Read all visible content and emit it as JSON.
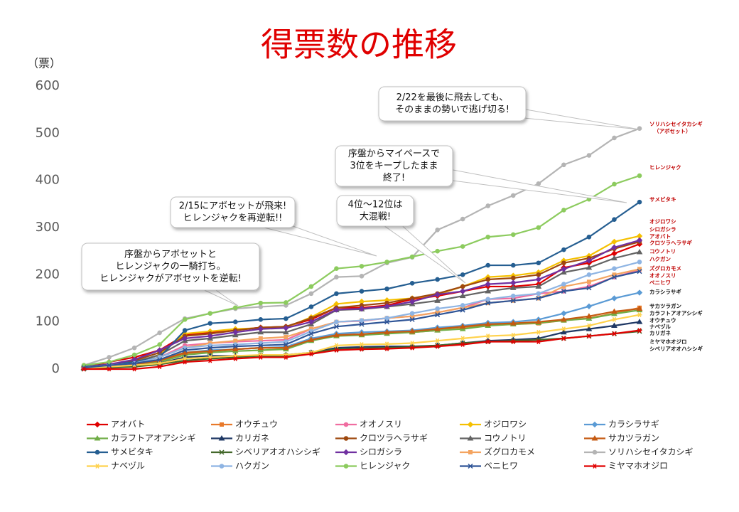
{
  "chart_data": {
    "type": "line",
    "title": "得票数の推移",
    "y_label": "（票）",
    "categories": [
      null,
      null,
      null,
      null,
      null,
      null,
      null,
      null,
      null,
      null,
      null,
      null,
      null,
      null,
      null,
      null,
      null,
      null,
      null,
      null,
      null,
      null,
      null
    ],
    "ylim": [
      0,
      600
    ],
    "yticks": [
      0,
      100,
      200,
      300,
      400,
      500,
      600
    ],
    "grid": false,
    "legend": "bottom",
    "series": [
      {
        "name": "アオバト",
        "color": "#e00000",
        "marker": "diamond",
        "values": [
          3,
          15,
          25,
          40,
          72,
          78,
          83,
          88,
          90,
          105,
          130,
          130,
          135,
          148,
          155,
          165,
          175,
          175,
          180,
          215,
          225,
          245,
          265
        ]
      },
      {
        "name": "オウチュウ",
        "color": "#e8792a",
        "marker": "square",
        "values": [
          3,
          5,
          8,
          15,
          32,
          38,
          42,
          45,
          45,
          62,
          73,
          74,
          76,
          78,
          82,
          87,
          93,
          95,
          97,
          103,
          108,
          118,
          130
        ]
      },
      {
        "name": "オオノスリ",
        "color": "#f06ca0",
        "marker": "circle",
        "values": [
          3,
          8,
          12,
          25,
          50,
          55,
          58,
          60,
          62,
          85,
          100,
          102,
          108,
          112,
          120,
          130,
          148,
          150,
          160,
          165,
          175,
          195,
          210
        ]
      },
      {
        "name": "オジロワシ",
        "color": "#f5c000",
        "marker": "diamond",
        "values": [
          5,
          10,
          15,
          30,
          75,
          80,
          85,
          87,
          88,
          110,
          138,
          143,
          146,
          150,
          158,
          175,
          195,
          198,
          205,
          230,
          240,
          270,
          282
        ]
      },
      {
        "name": "カラシラサギ",
        "color": "#5b9bd5",
        "marker": "diamond",
        "values": [
          3,
          5,
          10,
          20,
          35,
          40,
          42,
          45,
          47,
          65,
          75,
          78,
          80,
          82,
          88,
          92,
          98,
          100,
          105,
          118,
          133,
          150,
          162
        ]
      },
      {
        "name": "カラフトアオアシシギ",
        "color": "#70ad47",
        "marker": "triangle",
        "values": [
          3,
          5,
          8,
          15,
          30,
          35,
          38,
          40,
          42,
          60,
          70,
          72,
          75,
          78,
          82,
          85,
          92,
          95,
          98,
          103,
          107,
          117,
          125
        ]
      },
      {
        "name": "カリガネ",
        "color": "#1f3864",
        "marker": "triangle",
        "values": [
          2,
          5,
          8,
          12,
          25,
          28,
          28,
          28,
          30,
          35,
          45,
          47,
          48,
          48,
          50,
          55,
          60,
          62,
          65,
          78,
          85,
          92,
          100
        ]
      },
      {
        "name": "クロツラヘラサギ",
        "color": "#9e480e",
        "marker": "circle",
        "values": [
          3,
          10,
          18,
          35,
          70,
          75,
          82,
          88,
          90,
          108,
          130,
          135,
          140,
          150,
          160,
          175,
          190,
          193,
          200,
          225,
          235,
          255,
          270
        ]
      },
      {
        "name": "コウノトリ",
        "color": "#636363",
        "marker": "triangle",
        "values": [
          3,
          8,
          15,
          30,
          60,
          65,
          72,
          78,
          78,
          95,
          125,
          127,
          132,
          138,
          145,
          155,
          165,
          172,
          175,
          205,
          215,
          235,
          248
        ]
      },
      {
        "name": "サカツラガン",
        "color": "#c55a11",
        "marker": "triangle",
        "values": [
          3,
          5,
          10,
          18,
          35,
          38,
          42,
          45,
          45,
          62,
          72,
          74,
          78,
          80,
          85,
          90,
          95,
          97,
          100,
          105,
          112,
          122,
          128
        ]
      },
      {
        "name": "サメビタキ",
        "color": "#255e91",
        "marker": "circle",
        "values": [
          5,
          10,
          15,
          25,
          82,
          97,
          100,
          105,
          107,
          132,
          160,
          165,
          170,
          182,
          190,
          200,
          220,
          220,
          225,
          253,
          280,
          317,
          354
        ]
      },
      {
        "name": "シベリアオオハシシギ",
        "color": "#43682b",
        "marker": "x",
        "values": [
          0,
          3,
          5,
          10,
          18,
          22,
          25,
          28,
          28,
          35,
          42,
          44,
          45,
          47,
          50,
          55,
          58,
          60,
          62,
          65,
          70,
          75,
          80
        ]
      },
      {
        "name": "シロガシラ",
        "color": "#7030a0",
        "marker": "diamond",
        "values": [
          3,
          10,
          20,
          40,
          65,
          70,
          78,
          85,
          87,
          100,
          126,
          128,
          133,
          143,
          158,
          165,
          180,
          183,
          190,
          212,
          230,
          258,
          273
        ]
      },
      {
        "name": "ズグロカモメ",
        "color": "#f4a460",
        "marker": "square",
        "values": [
          3,
          8,
          12,
          25,
          45,
          55,
          60,
          65,
          68,
          85,
          100,
          103,
          108,
          112,
          120,
          130,
          140,
          145,
          150,
          175,
          185,
          200,
          212
        ]
      },
      {
        "name": "ソリハシセイタカシギ",
        "color": "#b4b4b4",
        "marker": "circle",
        "values": [
          8,
          25,
          45,
          77,
          107,
          118,
          128,
          132,
          135,
          160,
          195,
          197,
          225,
          237,
          295,
          318,
          346,
          368,
          393,
          433,
          453,
          490,
          510
        ]
      },
      {
        "name": "ナベヅル",
        "color": "#ffd24d",
        "marker": "star",
        "values": [
          2,
          5,
          8,
          12,
          22,
          25,
          28,
          30,
          30,
          35,
          50,
          52,
          53,
          55,
          60,
          65,
          70,
          72,
          78,
          85,
          92,
          105,
          115
        ]
      },
      {
        "name": "ハクガン",
        "color": "#8eb4e3",
        "marker": "circle",
        "values": [
          3,
          8,
          12,
          25,
          45,
          50,
          52,
          55,
          58,
          80,
          100,
          103,
          108,
          118,
          128,
          135,
          148,
          155,
          160,
          180,
          200,
          213,
          227
        ]
      },
      {
        "name": "ヒレンジャク",
        "color": "#8ccb5e",
        "marker": "circle",
        "values": [
          8,
          15,
          30,
          52,
          105,
          118,
          130,
          140,
          141,
          175,
          213,
          218,
          227,
          238,
          250,
          260,
          280,
          285,
          300,
          337,
          360,
          392,
          410
        ]
      },
      {
        "name": "ベニヒワ",
        "color": "#2f5597",
        "marker": "x",
        "values": [
          3,
          8,
          12,
          20,
          40,
          45,
          48,
          50,
          52,
          75,
          90,
          95,
          100,
          105,
          115,
          125,
          140,
          145,
          150,
          165,
          172,
          195,
          207
        ]
      },
      {
        "name": "ミヤマホオジロ",
        "color": "#e00000",
        "marker": "star",
        "values": [
          0,
          0,
          0,
          5,
          15,
          18,
          22,
          25,
          25,
          32,
          40,
          42,
          43,
          45,
          48,
          52,
          58,
          58,
          58,
          65,
          70,
          75,
          82
        ]
      }
    ],
    "end_labels": [
      {
        "lines": [
          "ソリハシセイタカシギ",
          "（アボセット）"
        ],
        "color": "#c00000"
      },
      {
        "lines": [
          "ヒレンジャク"
        ],
        "color": "#c00000"
      },
      {
        "lines": [
          "サメビタキ"
        ],
        "color": "#c00000"
      },
      {
        "lines": [
          "オジロワシ"
        ],
        "color": "#c00000"
      },
      {
        "lines": [
          "シロガシラ"
        ],
        "color": "#c00000"
      },
      {
        "lines": [
          "アオバト"
        ],
        "color": "#c00000"
      },
      {
        "lines": [
          "クロツラヘラサギ"
        ],
        "color": "#c00000"
      },
      {
        "lines": [
          "コウノトリ"
        ],
        "color": "#c00000"
      },
      {
        "lines": [
          "ハクガン"
        ],
        "color": "#c00000"
      },
      {
        "lines": [
          "ズグロカモメ"
        ],
        "color": "#c00000"
      },
      {
        "lines": [
          "オオノスリ"
        ],
        "color": "#c00000"
      },
      {
        "lines": [
          "ベニヒワ"
        ],
        "color": "#c00000"
      },
      {
        "lines": [
          "カラシラサギ"
        ],
        "color": "#111111"
      },
      {
        "lines": [
          "サカツラガン"
        ],
        "color": "#111111"
      },
      {
        "lines": [
          "カラフトアオアシシギ"
        ],
        "color": "#111111"
      },
      {
        "lines": [
          "オウチュウ"
        ],
        "color": "#111111"
      },
      {
        "lines": [
          "ナベヅル"
        ],
        "color": "#111111"
      },
      {
        "lines": [
          "カリガネ"
        ],
        "color": "#111111"
      },
      {
        "lines": [
          "ミヤマホオジロ"
        ],
        "color": "#111111"
      },
      {
        "lines": [
          "シベリアオオハシシギ"
        ],
        "color": "#111111"
      }
    ],
    "annotations": [
      {
        "lines": [
          "2/22を最後に飛去しても、",
          "そのままの勢いで逃げ切る!"
        ]
      },
      {
        "lines": [
          "序盤からマイペースで",
          "3位をキープしたまま",
          "終了!"
        ]
      },
      {
        "lines": [
          "4位〜12位は",
          "大混戦!"
        ]
      },
      {
        "lines": [
          "2/15にアボセットが飛来!",
          "ヒレンジャクを再逆転!!"
        ]
      },
      {
        "lines": [
          "序盤からアボセットと",
          "ヒレンジャクの一騎打ち。",
          "ヒレンジャクがアボセットを逆転!"
        ]
      }
    ]
  }
}
